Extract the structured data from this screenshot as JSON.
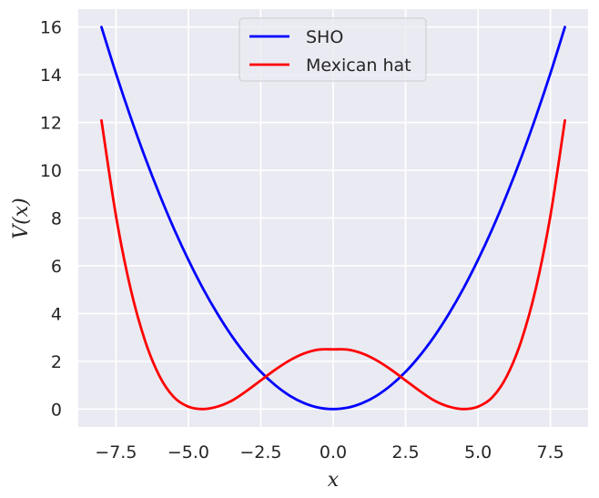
{
  "chart_data": {
    "type": "line",
    "title": "",
    "xlabel": "x",
    "ylabel": "V(x)",
    "xlim": [
      -8.8,
      8.8
    ],
    "ylim": [
      -0.75,
      16.75
    ],
    "grid": true,
    "background": "#EAEAF2",
    "legend_placement": "top-center",
    "xticks": [
      -7.5,
      -5.0,
      -2.5,
      0.0,
      2.5,
      5.0,
      7.5
    ],
    "xtick_labels": [
      "−7.5",
      "−5.0",
      "−2.5",
      "0.0",
      "2.5",
      "5.0",
      "7.5"
    ],
    "yticks": [
      0,
      2,
      4,
      6,
      8,
      10,
      12,
      14,
      16
    ],
    "ytick_labels": [
      "0",
      "2",
      "4",
      "6",
      "8",
      "10",
      "12",
      "14",
      "16"
    ],
    "series": [
      {
        "name": "SHO",
        "color": "#0000FF",
        "x": [
          -8,
          -7.5,
          -7,
          -6.5,
          -6,
          -5.5,
          -5,
          -4.5,
          -4,
          -3.5,
          -3,
          -2.5,
          -2,
          -1.5,
          -1,
          -0.5,
          0,
          0.5,
          1,
          1.5,
          2,
          2.5,
          3,
          3.5,
          4,
          4.5,
          5,
          5.5,
          6,
          6.5,
          7,
          7.5,
          8
        ],
        "y": [
          16.0,
          14.06,
          12.25,
          10.56,
          9.0,
          7.56,
          6.25,
          5.06,
          4.0,
          3.06,
          2.25,
          1.56,
          1.0,
          0.56,
          0.25,
          0.06,
          0.0,
          0.06,
          0.25,
          0.56,
          1.0,
          1.56,
          2.25,
          3.06,
          4.0,
          5.06,
          6.25,
          7.56,
          9.0,
          10.56,
          12.25,
          14.06,
          16.0
        ]
      },
      {
        "name": "Mexican hat",
        "color": "#FF0000",
        "x": [
          -8,
          -7.5,
          -7,
          -6.5,
          -6,
          -5.5,
          -5,
          -4.5,
          -4,
          -3.5,
          -3,
          -2.5,
          -2,
          -1.5,
          -1,
          -0.5,
          0,
          0.5,
          1,
          1.5,
          2,
          2.5,
          3,
          3.5,
          4,
          4.5,
          5,
          5.5,
          6,
          6.5,
          7,
          7.5,
          8
        ],
        "y": [
          12.09,
          8.1,
          5.07,
          2.88,
          1.39,
          0.5,
          0.1,
          0.0,
          0.1,
          0.35,
          0.75,
          1.2,
          1.65,
          2.04,
          2.33,
          2.49,
          2.5,
          2.49,
          2.33,
          2.04,
          1.65,
          1.2,
          0.75,
          0.35,
          0.1,
          0.0,
          0.1,
          0.5,
          1.39,
          2.88,
          5.07,
          8.1,
          12.09
        ]
      }
    ]
  }
}
